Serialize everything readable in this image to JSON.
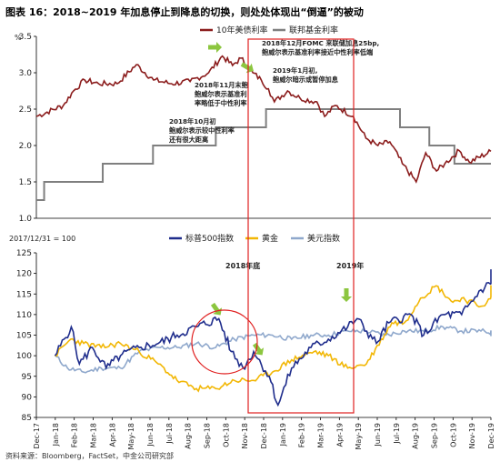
{
  "title": "图表 16：2018~2019 年加息停止到降息的切换，则处处体现出“倒逼”的被动",
  "source": "资料来源：Bloomberg，FactSet，中金公司研究部",
  "colors": {
    "treasury": "#8b1c1c",
    "fedfunds": "#7f7f7f",
    "sp500": "#1f2d8c",
    "gold": "#f2b705",
    "usd": "#8fa8cc",
    "highlight": "#e02020",
    "arrow": "#8cc63f"
  },
  "top_panel": {
    "unit": "%",
    "legend": [
      "10年美债利率",
      "联邦基金利率"
    ],
    "annotations": [
      "2018年12月FOMC 来联储加息25bp,",
      "鲍威尔表示基准利率接近中性利率低端",
      "2019年1月初,",
      "鲍威尔暗示或暂停加息",
      "2018年11月末鲍",
      "鲍威尔表示基准利",
      "率略低于中性利率",
      "2018年10月初",
      "鲍威尔表示较中性利率",
      "还有很大距离"
    ]
  },
  "bottom_panel": {
    "note": "2017/12/31 = 100",
    "legend": [
      "标普500指数",
      "黄金",
      "美元指数"
    ],
    "annotations": [
      "2018年底",
      "2019年"
    ]
  },
  "chart_data": [
    {
      "type": "line",
      "title": "",
      "ylabel": "%",
      "ylim": [
        1.0,
        3.5
      ],
      "yticks": [
        1.0,
        1.5,
        2.0,
        2.5,
        3.0,
        3.5
      ],
      "xlim": [
        "2017-12-01",
        "2019-12-31"
      ],
      "series": [
        {
          "name": "10年美债利率",
          "x": [
            "2017-12-01",
            "2018-01-15",
            "2018-02-01",
            "2018-02-20",
            "2018-03-15",
            "2018-04-15",
            "2018-05-17",
            "2018-06-15",
            "2018-07-15",
            "2018-08-15",
            "2018-09-15",
            "2018-10-08",
            "2018-10-25",
            "2018-11-08",
            "2018-11-28",
            "2018-12-12",
            "2018-12-24",
            "2019-01-03",
            "2019-01-25",
            "2019-02-15",
            "2019-03-15",
            "2019-03-28",
            "2019-04-15",
            "2019-05-15",
            "2019-06-05",
            "2019-06-25",
            "2019-07-15",
            "2019-08-05",
            "2019-08-28",
            "2019-09-13",
            "2019-10-01",
            "2019-10-15",
            "2019-11-08",
            "2019-11-25",
            "2019-12-31"
          ],
          "values": [
            2.4,
            2.55,
            2.75,
            2.9,
            2.85,
            2.85,
            3.11,
            2.9,
            2.85,
            2.88,
            3.0,
            3.23,
            3.1,
            3.2,
            3.0,
            2.9,
            2.78,
            2.6,
            2.75,
            2.65,
            2.6,
            2.4,
            2.55,
            2.4,
            2.1,
            2.0,
            2.05,
            1.75,
            1.5,
            1.9,
            1.65,
            1.75,
            1.93,
            1.77,
            1.92
          ]
        },
        {
          "name": "联邦基金利率",
          "x": [
            "2017-12-01",
            "2017-12-14",
            "2018-03-22",
            "2018-06-14",
            "2018-09-27",
            "2018-12-20",
            "2019-08-01",
            "2019-09-19",
            "2019-10-31",
            "2019-12-31"
          ],
          "values": [
            1.25,
            1.5,
            1.75,
            2.0,
            2.25,
            2.5,
            2.25,
            2.0,
            1.75,
            1.75
          ]
        }
      ]
    },
    {
      "type": "line",
      "title": "",
      "ylim": [
        85,
        125
      ],
      "yticks": [
        85,
        90,
        95,
        100,
        105,
        110,
        115,
        120,
        125
      ],
      "categories": [
        "Dec-17",
        "Jan-18",
        "Feb-18",
        "Mar-18",
        "Apr-18",
        "May-18",
        "Jun-18",
        "Jul-18",
        "Aug-18",
        "Sep-18",
        "Oct-18",
        "Nov-18",
        "Dec-18",
        "Jan-19",
        "Feb-19",
        "Mar-19",
        "Apr-19",
        "May-19",
        "Jun-19",
        "Jul-19",
        "Aug-19",
        "Sep-19",
        "Oct-19",
        "Nov-19",
        "Dec-19"
      ],
      "series": [
        {
          "name": "标普500指数",
          "x": [
            "2017-12-31",
            "2018-01-26",
            "2018-02-08",
            "2018-03-01",
            "2018-03-23",
            "2018-04-15",
            "2018-05-15",
            "2018-06-15",
            "2018-07-15",
            "2018-08-15",
            "2018-09-20",
            "2018-10-10",
            "2018-10-29",
            "2018-11-15",
            "2018-12-10",
            "2018-12-24",
            "2019-01-15",
            "2019-02-15",
            "2019-03-15",
            "2019-04-15",
            "2019-04-30",
            "2019-05-31",
            "2019-06-20",
            "2019-07-26",
            "2019-08-15",
            "2019-09-15",
            "2019-10-15",
            "2019-11-15",
            "2019-12-31"
          ],
          "values": [
            100,
            107,
            98,
            102,
            97,
            100,
            102,
            103,
            105,
            107,
            109,
            101,
            97,
            101,
            95,
            88,
            97,
            102,
            104,
            107,
            109,
            103,
            108,
            110,
            105,
            110,
            110,
            116,
            121
          ]
        },
        {
          "name": "黄金",
          "x": [
            "2017-12-31",
            "2018-01-25",
            "2018-02-15",
            "2018-03-15",
            "2018-04-15",
            "2018-05-15",
            "2018-06-15",
            "2018-07-15",
            "2018-08-15",
            "2018-09-15",
            "2018-10-15",
            "2018-11-15",
            "2018-12-15",
            "2019-01-15",
            "2019-02-20",
            "2019-03-15",
            "2019-04-15",
            "2019-05-15",
            "2019-06-25",
            "2019-07-15",
            "2019-08-10",
            "2019-09-04",
            "2019-10-01",
            "2019-10-15",
            "2019-11-15",
            "2019-12-31"
          ],
          "values": [
            100,
            104,
            103,
            102,
            103,
            101,
            98,
            94,
            92,
            92,
            94,
            94,
            96,
            99,
            101,
            100,
            97,
            98,
            108,
            108,
            114,
            117,
            113,
            114,
            112,
            117
          ]
        },
        {
          "name": "美元指数",
          "x": [
            "2017-12-31",
            "2018-01-20",
            "2018-02-15",
            "2018-03-15",
            "2018-04-15",
            "2018-05-15",
            "2018-06-15",
            "2018-07-15",
            "2018-08-15",
            "2018-09-15",
            "2018-10-15",
            "2018-11-15",
            "2018-12-15",
            "2019-01-15",
            "2019-02-15",
            "2019-03-15",
            "2019-04-15",
            "2019-05-15",
            "2019-06-15",
            "2019-07-15",
            "2019-08-15",
            "2019-09-15",
            "2019-10-15",
            "2019-11-15",
            "2019-12-31"
          ],
          "values": [
            100,
            97,
            96,
            97,
            97,
            101,
            102,
            102,
            103,
            102,
            104,
            105,
            105,
            104,
            105,
            105,
            106,
            106,
            105,
            106,
            106,
            107,
            106,
            106,
            105
          ]
        }
      ]
    }
  ]
}
